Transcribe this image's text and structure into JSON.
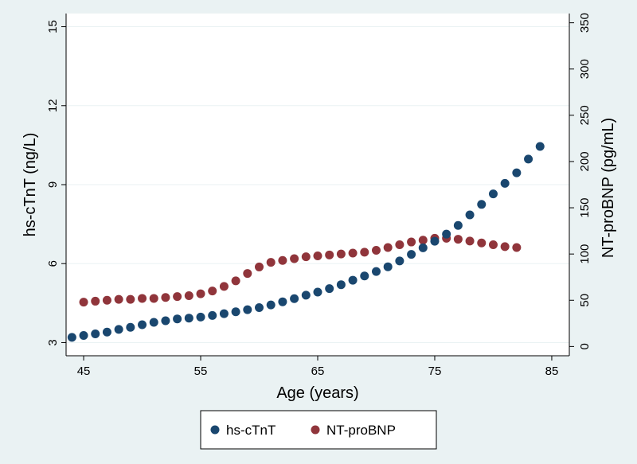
{
  "chart_data": {
    "type": "scatter",
    "xlabel": "Age (years)",
    "ylabel_left": "hs-cTnT (ng/L)",
    "ylabel_right": "NT-proBNP (pg/mL)",
    "xlim": [
      43.5,
      86.5
    ],
    "ylim_left": [
      2.5,
      15.5
    ],
    "ylim_right": [
      -10,
      360
    ],
    "x_ticks": [
      45,
      55,
      65,
      75,
      85
    ],
    "y_left_ticks": [
      3,
      6,
      9,
      12,
      15
    ],
    "y_right_ticks": [
      0,
      50,
      100,
      150,
      200,
      250,
      300,
      350
    ],
    "grid": "horizontal",
    "legend_position": "bottom",
    "series": [
      {
        "name": "hs-cTnT",
        "axis": "left",
        "color": "#1a476f",
        "x": [
          44,
          45,
          46,
          47,
          48,
          49,
          50,
          51,
          52,
          53,
          54,
          55,
          56,
          57,
          58,
          59,
          60,
          61,
          62,
          63,
          64,
          65,
          66,
          67,
          68,
          69,
          70,
          71,
          72,
          73,
          74,
          75,
          76,
          77,
          78,
          79,
          80,
          81,
          82,
          83,
          84
        ],
        "y": [
          3.2,
          3.27,
          3.33,
          3.4,
          3.5,
          3.58,
          3.68,
          3.77,
          3.83,
          3.9,
          3.93,
          3.97,
          4.03,
          4.1,
          4.17,
          4.25,
          4.33,
          4.43,
          4.55,
          4.67,
          4.8,
          4.92,
          5.05,
          5.2,
          5.37,
          5.53,
          5.7,
          5.88,
          6.1,
          6.35,
          6.6,
          6.85,
          7.12,
          7.45,
          7.85,
          8.25,
          8.65,
          9.05,
          9.45,
          9.97,
          10.45
        ]
      },
      {
        "name": "NT-proBNP",
        "axis": "right",
        "color": "#90353b",
        "x": [
          45,
          46,
          47,
          48,
          49,
          50,
          51,
          52,
          53,
          54,
          55,
          56,
          57,
          58,
          59,
          60,
          61,
          62,
          63,
          64,
          65,
          66,
          67,
          68,
          69,
          70,
          71,
          72,
          73,
          74,
          75,
          76,
          77,
          78,
          79,
          80,
          81,
          82
        ],
        "y": [
          48,
          49,
          50,
          51,
          51,
          52,
          52,
          53,
          54,
          55,
          57,
          60,
          65,
          71,
          79,
          86,
          91,
          93,
          95,
          97,
          98,
          99,
          100,
          101,
          102,
          104,
          107,
          110,
          113,
          115,
          117,
          117,
          116,
          114,
          112,
          110,
          108,
          107
        ]
      }
    ]
  }
}
